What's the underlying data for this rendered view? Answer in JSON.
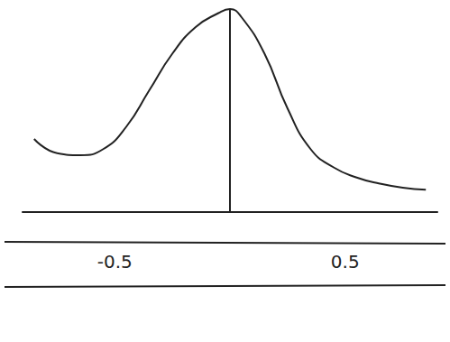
{
  "chart_data": {
    "type": "line",
    "x": [
      -0.85,
      -0.75,
      -0.65,
      -0.55,
      -0.45,
      -0.35,
      -0.25,
      -0.15,
      -0.05,
      0,
      0.05,
      0.15,
      0.25,
      0.35,
      0.45,
      0.55,
      0.65,
      0.75,
      0.85
    ],
    "values": [
      0.36,
      0.29,
      0.28,
      0.31,
      0.42,
      0.6,
      0.78,
      0.91,
      0.98,
      1.0,
      0.96,
      0.78,
      0.51,
      0.31,
      0.22,
      0.17,
      0.14,
      0.12,
      0.11
    ],
    "color": "#222222",
    "xlim": [
      -0.9,
      0.9
    ],
    "xticks": [
      -0.5,
      0.5
    ],
    "ylim": [
      0,
      1
    ],
    "vertical_line_x": 0,
    "tick_labels": "x",
    "grid": false
  }
}
